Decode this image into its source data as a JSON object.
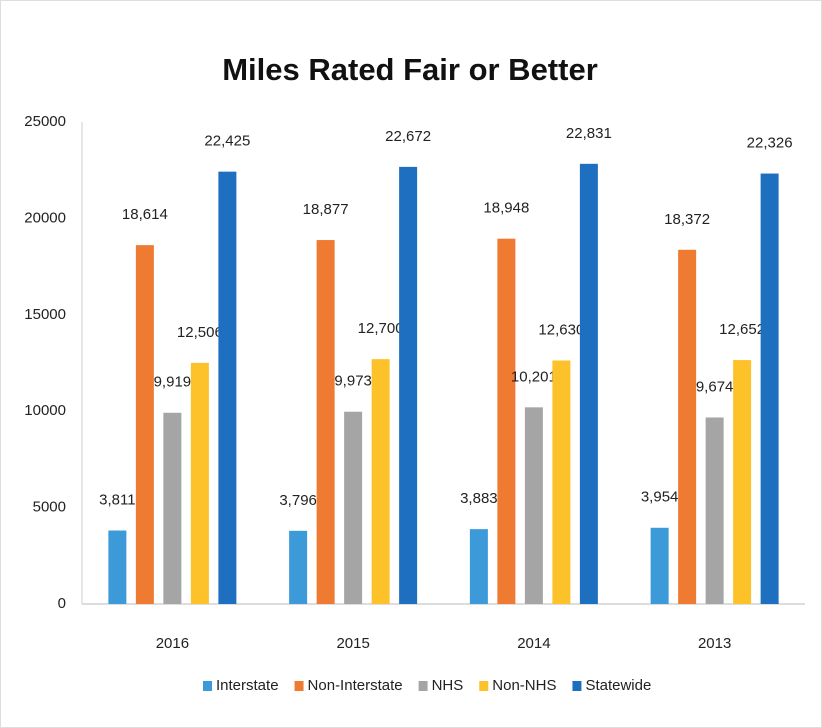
{
  "chart_data": {
    "type": "bar",
    "title": "Miles Rated Fair or Better",
    "categories": [
      "2016",
      "2015",
      "2014",
      "2013"
    ],
    "series": [
      {
        "name": "Interstate",
        "color": "#3d9ad9",
        "values": [
          3811,
          3796,
          3883,
          3954
        ],
        "value_labels": [
          "3,811",
          "3,796",
          "3,883",
          "3,954"
        ]
      },
      {
        "name": "Non-Interstate",
        "color": "#ef7a32",
        "values": [
          18614,
          18877,
          18948,
          18372
        ],
        "value_labels": [
          "18,614",
          "18,877",
          "18,948",
          "18,372"
        ]
      },
      {
        "name": "NHS",
        "color": "#a5a5a5",
        "values": [
          9919,
          9973,
          10201,
          9674
        ],
        "value_labels": [
          "9,919",
          "9,973",
          "10,201",
          "9,674"
        ]
      },
      {
        "name": "Non-NHS",
        "color": "#fdc12a",
        "values": [
          12506,
          12700,
          12630,
          12652
        ],
        "value_labels": [
          "12,506",
          "12,700",
          "12,630",
          "12,652"
        ]
      },
      {
        "name": "Statewide",
        "color": "#1f6fc0",
        "values": [
          22425,
          22672,
          22831,
          22326
        ],
        "value_labels": [
          "22,425",
          "22,672",
          "22,831",
          "22,326"
        ]
      }
    ],
    "ylim": [
      0,
      25000
    ],
    "yticks": [
      0,
      5000,
      10000,
      15000,
      20000,
      25000
    ],
    "grid": false,
    "legend": "bottom"
  }
}
